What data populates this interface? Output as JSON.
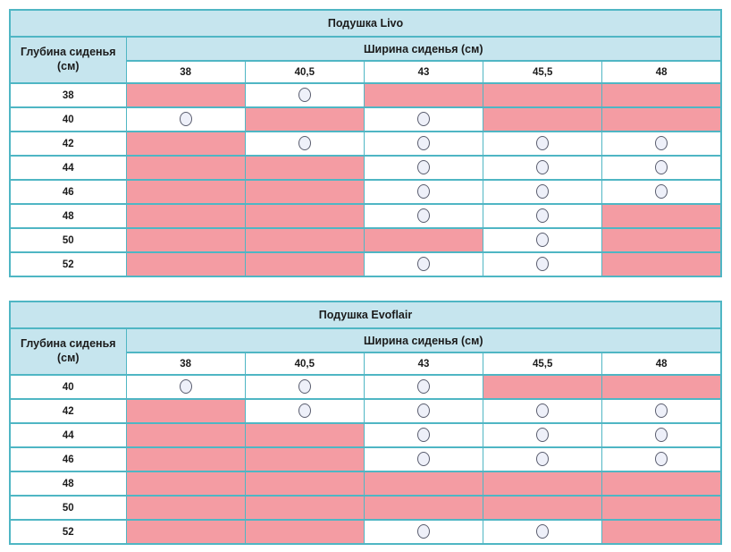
{
  "colors": {
    "header_bg": "#c6e5ee",
    "unavailable_pink": "#f49ca3",
    "border_teal": "#4fb6c4",
    "circle_stroke": "#5a5d6e",
    "circle_fill": "#eef0f9",
    "text": "#1b1b1b"
  },
  "icons": {
    "available_marker": "circle-outline-icon"
  },
  "tables": [
    {
      "title": "Подушка Livo",
      "depth_header": "Глубина сиденья (см)",
      "width_header": "Ширина сиденья (см)",
      "columns": [
        "38",
        "40,5",
        "43",
        "45,5",
        "48"
      ],
      "rows": [
        {
          "label": "38",
          "cells": [
            "pink",
            "circle",
            "pink",
            "pink",
            "pink"
          ]
        },
        {
          "label": "40",
          "cells": [
            "circle",
            "pink",
            "circle",
            "pink",
            "pink"
          ]
        },
        {
          "label": "42",
          "cells": [
            "pink",
            "circle",
            "circle",
            "circle",
            "circle"
          ]
        },
        {
          "label": "44",
          "cells": [
            "pink",
            "pink",
            "circle",
            "circle",
            "circle"
          ]
        },
        {
          "label": "46",
          "cells": [
            "pink",
            "pink",
            "circle",
            "circle",
            "circle"
          ]
        },
        {
          "label": "48",
          "cells": [
            "pink",
            "pink",
            "circle",
            "circle",
            "pink"
          ]
        },
        {
          "label": "50",
          "cells": [
            "pink",
            "pink",
            "pink",
            "circle",
            "pink"
          ]
        },
        {
          "label": "52",
          "cells": [
            "pink",
            "pink",
            "circle",
            "circle",
            "pink"
          ]
        }
      ]
    },
    {
      "title": "Подушка Evoflair",
      "depth_header": "Глубина сиденья (см)",
      "width_header": "Ширина сиденья (см)",
      "columns": [
        "38",
        "40,5",
        "43",
        "45,5",
        "48"
      ],
      "rows": [
        {
          "label": "40",
          "cells": [
            "circle",
            "circle",
            "circle",
            "pink",
            "pink"
          ]
        },
        {
          "label": "42",
          "cells": [
            "pink",
            "circle",
            "circle",
            "circle",
            "circle"
          ]
        },
        {
          "label": "44",
          "cells": [
            "pink",
            "pink",
            "circle",
            "circle",
            "circle"
          ]
        },
        {
          "label": "46",
          "cells": [
            "pink",
            "pink",
            "circle",
            "circle",
            "circle"
          ]
        },
        {
          "label": "48",
          "cells": [
            "pink",
            "pink",
            "pink",
            "pink",
            "pink"
          ]
        },
        {
          "label": "50",
          "cells": [
            "pink",
            "pink",
            "pink",
            "pink",
            "pink"
          ]
        },
        {
          "label": "52",
          "cells": [
            "pink",
            "pink",
            "circle",
            "circle",
            "pink"
          ]
        }
      ]
    }
  ]
}
